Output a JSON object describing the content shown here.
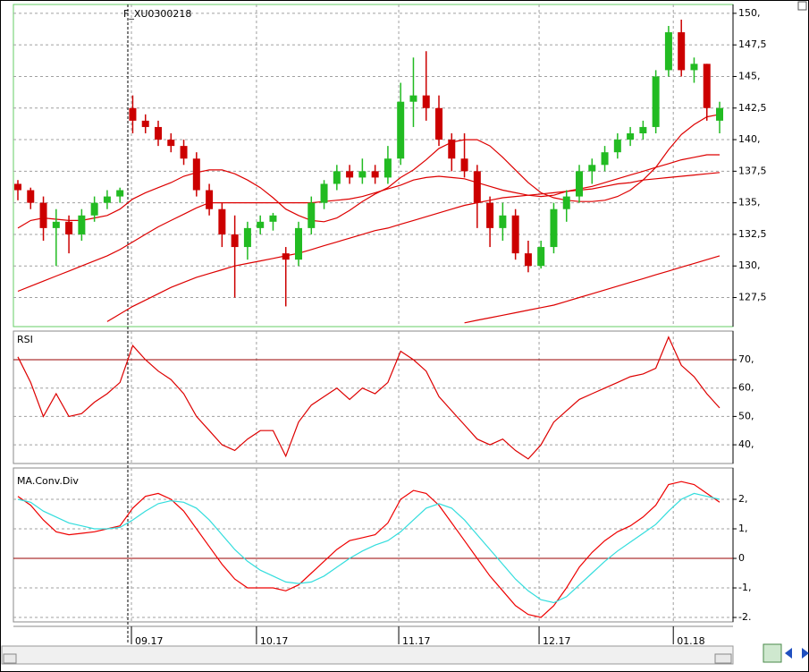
{
  "chart_data": [
    {
      "type": "candlestick",
      "title": "F_XU0300218",
      "open": [
        136.5,
        136,
        135,
        133,
        133.5,
        132.5,
        134,
        135,
        135.5,
        142.5,
        141.5,
        141,
        140,
        139.5,
        138.5,
        136,
        134.5,
        132.5,
        131.5,
        133,
        133.5,
        131,
        130.5,
        133,
        135,
        136.5,
        137.5,
        137,
        137.5,
        137,
        138.5,
        143,
        143.5,
        142.5,
        140,
        138.5,
        137.5,
        135,
        133,
        134,
        131,
        130,
        131.5,
        134.5,
        135.5,
        137.5,
        138,
        139,
        140,
        140.5,
        141,
        145.5,
        148.5,
        145.5,
        146,
        141.5
      ],
      "high": [
        136.8,
        136.2,
        135.5,
        134.5,
        134,
        134.5,
        135.5,
        136,
        136.2,
        143.5,
        142,
        141.5,
        140.5,
        140,
        139,
        136.5,
        135,
        134,
        133.5,
        134,
        134.2,
        131.5,
        133.5,
        135.5,
        136.8,
        138,
        138,
        138.5,
        138,
        139.5,
        144.5,
        146.5,
        147,
        143.5,
        140.5,
        140.5,
        138,
        135.5,
        135,
        134.5,
        132,
        132,
        135,
        136,
        138,
        138.5,
        139.5,
        140.5,
        141,
        141.5,
        145.5,
        149,
        149.5,
        146.5,
        146,
        143
      ],
      "low": [
        135.2,
        134.5,
        132,
        130,
        131,
        132,
        133.5,
        134.5,
        135,
        140.5,
        140.5,
        139.5,
        139,
        138,
        135.5,
        134,
        131.5,
        127.5,
        130.5,
        132.5,
        132.8,
        126.8,
        130,
        132.5,
        134.5,
        136,
        136.5,
        136.5,
        136.5,
        136.5,
        138,
        141,
        141.5,
        139.5,
        137.5,
        137,
        133,
        131.5,
        132,
        130.5,
        129.5,
        129.8,
        131,
        133.5,
        135,
        136.5,
        137.5,
        138.5,
        139.5,
        140,
        140.5,
        145,
        145,
        144.5,
        141.5,
        140.5
      ],
      "close": [
        136,
        135,
        133,
        133.5,
        132.5,
        134,
        135,
        135.5,
        136,
        141.5,
        141,
        140,
        139.5,
        138.5,
        136,
        134.5,
        132.5,
        131.5,
        133,
        133.5,
        134,
        130.5,
        133,
        135,
        136.5,
        137.5,
        137,
        137.5,
        137,
        138.5,
        143,
        143.5,
        142.5,
        140,
        138.5,
        137.5,
        135,
        133,
        134,
        131,
        130,
        131.5,
        134.5,
        135.5,
        137.5,
        138,
        139,
        140,
        140.5,
        141,
        145,
        148.5,
        145.5,
        146,
        142.5,
        142.5
      ],
      "up_color": "#22bb22",
      "down_color": "#cc0000",
      "lines": [
        {
          "color": "#dd0000",
          "values": [
            133,
            133.6,
            133.8,
            133.7,
            133.6,
            133.6,
            133.8,
            134,
            134.5,
            135.3,
            135.8,
            136.2,
            136.6,
            137.1,
            137.4,
            137.6,
            137.6,
            137.3,
            136.8,
            136.2,
            135.4,
            134.5,
            134,
            133.6,
            133.5,
            133.8,
            134.4,
            135.1,
            135.7,
            136.2,
            137,
            137.6,
            138.4,
            139.3,
            139.8,
            140,
            140,
            139.5,
            138.6,
            137.6,
            136.6,
            135.8,
            135.4,
            135.2,
            135.1,
            135.1,
            135.2,
            135.5,
            136,
            136.8,
            137.8,
            139.2,
            140.4,
            141.2,
            141.8,
            142
          ]
        },
        {
          "color": "#dd0000",
          "values": [
            128,
            128.4,
            128.8,
            129.2,
            129.6,
            130,
            130.4,
            130.8,
            131.3,
            131.9,
            132.5,
            133.1,
            133.6,
            134.1,
            134.6,
            135,
            135,
            135,
            135,
            135,
            135,
            135,
            135,
            135,
            135.1,
            135.2,
            135.3,
            135.5,
            135.8,
            136.1,
            136.4,
            136.8,
            137,
            137.1,
            137,
            136.9,
            136.6,
            136.3,
            136,
            135.8,
            135.6,
            135.5,
            135.6,
            135.9,
            136.1,
            136.3,
            136.6,
            136.9,
            137.2,
            137.5,
            137.8,
            138.1,
            138.4,
            138.6,
            138.8,
            138.8
          ]
        },
        {
          "color": "#dd0000",
          "values": [
            null,
            null,
            null,
            null,
            null,
            null,
            null,
            125.6,
            126.2,
            126.8,
            127.3,
            127.8,
            128.3,
            128.7,
            129.1,
            129.4,
            129.7,
            130,
            130.2,
            130.4,
            130.6,
            130.8,
            131,
            131.3,
            131.6,
            131.9,
            132.2,
            132.5,
            132.8,
            133,
            133.3,
            133.6,
            133.9,
            134.2,
            134.5,
            134.8,
            135,
            135.2,
            135.4,
            135.5,
            135.6,
            135.7,
            135.8,
            135.9,
            136,
            136.1,
            136.3,
            136.5,
            136.6,
            136.8,
            136.9,
            137,
            137.1,
            137.2,
            137.3,
            137.4
          ]
        },
        {
          "color": "#dd0000",
          "values": [
            null,
            null,
            null,
            null,
            null,
            null,
            null,
            null,
            null,
            null,
            null,
            null,
            null,
            null,
            null,
            null,
            null,
            null,
            null,
            null,
            null,
            null,
            null,
            null,
            null,
            null,
            null,
            null,
            null,
            null,
            null,
            null,
            null,
            null,
            null,
            125.5,
            125.7,
            125.9,
            126.1,
            126.3,
            126.5,
            126.7,
            126.9,
            127.2,
            127.5,
            127.8,
            128.1,
            128.4,
            128.7,
            129,
            129.3,
            129.6,
            129.9,
            130.2,
            130.5,
            130.8
          ]
        }
      ],
      "xlim": [
        -0.35,
        56.05
      ],
      "ylim": [
        125.2,
        150.7
      ],
      "yticks": [
        {
          "value": 127.5,
          "label": "127,5"
        },
        {
          "value": 130,
          "label": "130,"
        },
        {
          "value": 132.5,
          "label": "132,5"
        },
        {
          "value": 135,
          "label": "135,"
        },
        {
          "value": 137.5,
          "label": "137,5"
        },
        {
          "value": 140,
          "label": "140,"
        },
        {
          "value": 142.5,
          "label": "142,5"
        },
        {
          "value": 145,
          "label": "145,"
        },
        {
          "value": 147.5,
          "label": "147,5"
        },
        {
          "value": 150,
          "label": "150,"
        }
      ],
      "grid": true
    },
    {
      "type": "line",
      "title": "RSI",
      "series": [
        {
          "color": "#dd0000",
          "values": [
            71,
            62,
            50,
            58,
            50,
            51,
            55,
            58,
            62,
            75,
            70,
            66,
            63,
            58,
            50,
            45,
            40,
            38,
            42,
            45,
            45,
            36,
            48,
            54,
            57,
            60,
            56,
            60,
            58,
            62,
            73,
            70,
            66,
            57,
            52,
            47,
            42,
            40,
            42,
            38,
            35,
            40,
            48,
            52,
            56,
            58,
            60,
            62,
            64,
            65,
            67,
            78,
            68,
            64,
            58,
            53
          ]
        }
      ],
      "levels": [
        70
      ],
      "level_color": "#990000",
      "xlim": [
        -0.35,
        56.05
      ],
      "ylim": [
        33.4,
        80.1
      ],
      "yticks": [
        {
          "value": 40,
          "label": "40,"
        },
        {
          "value": 50,
          "label": "50,"
        },
        {
          "value": 60,
          "label": "60,"
        },
        {
          "value": 70,
          "label": "70,"
        }
      ],
      "grid": true
    },
    {
      "type": "line",
      "title": "MA.Conv.Div",
      "series": [
        {
          "color": "#ee0000",
          "values": [
            2.1,
            1.8,
            1.3,
            0.9,
            0.8,
            0.85,
            0.9,
            1.0,
            1.1,
            1.7,
            2.1,
            2.2,
            2.0,
            1.6,
            1.0,
            0.4,
            -0.2,
            -0.7,
            -1.0,
            -1.0,
            -1.0,
            -1.1,
            -0.9,
            -0.5,
            -0.1,
            0.3,
            0.6,
            0.7,
            0.8,
            1.2,
            2.0,
            2.3,
            2.2,
            1.8,
            1.2,
            0.6,
            0.0,
            -0.6,
            -1.1,
            -1.6,
            -1.9,
            -2.0,
            -1.6,
            -1.0,
            -0.3,
            0.2,
            0.6,
            0.9,
            1.1,
            1.4,
            1.8,
            2.5,
            2.6,
            2.5,
            2.2,
            1.9
          ]
        },
        {
          "color": "#33dddd",
          "values": [
            2.0,
            1.9,
            1.6,
            1.4,
            1.2,
            1.1,
            1.0,
            1.0,
            1.05,
            1.3,
            1.6,
            1.85,
            1.95,
            1.9,
            1.7,
            1.3,
            0.8,
            0.3,
            -0.1,
            -0.4,
            -0.6,
            -0.8,
            -0.85,
            -0.8,
            -0.6,
            -0.3,
            0.0,
            0.25,
            0.45,
            0.6,
            0.9,
            1.3,
            1.7,
            1.85,
            1.7,
            1.3,
            0.8,
            0.3,
            -0.2,
            -0.7,
            -1.1,
            -1.4,
            -1.5,
            -1.3,
            -0.9,
            -0.5,
            -0.1,
            0.25,
            0.55,
            0.85,
            1.15,
            1.6,
            2.0,
            2.2,
            2.1,
            2.0
          ]
        }
      ],
      "levels": [
        0
      ],
      "level_color": "#990000",
      "xlim": [
        -0.35,
        56.05
      ],
      "ylim": [
        -2.15,
        3.06
      ],
      "yticks": [
        {
          "value": -2,
          "label": "-2."
        },
        {
          "value": -1,
          "label": "-1,"
        },
        0,
        {
          "value": 1,
          "label": "1,"
        },
        {
          "value": 2,
          "label": "2,"
        }
      ],
      "xticks": [
        {
          "value": 8.9,
          "label": "09.17"
        },
        {
          "value": 18.7,
          "label": "10.17"
        },
        {
          "value": 29.85,
          "label": "11.17"
        },
        {
          "value": 40.85,
          "label": "12.17"
        },
        {
          "value": 51.37,
          "label": "01.18"
        }
      ],
      "grid": true
    }
  ]
}
